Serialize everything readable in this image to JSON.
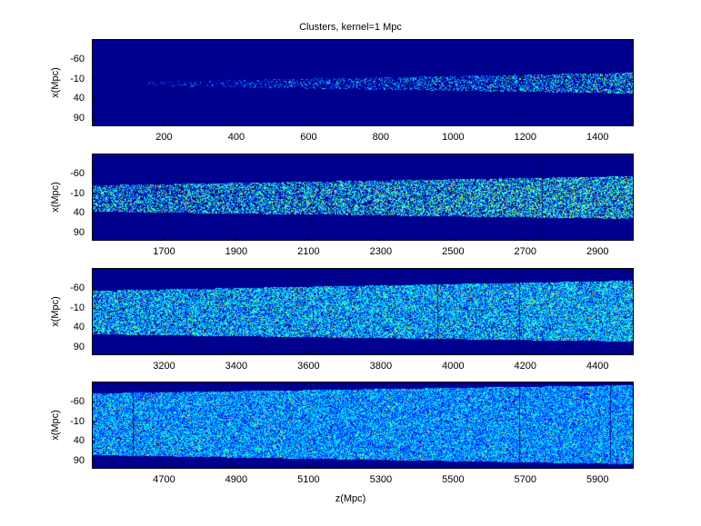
{
  "chart_data": [
    {
      "type": "heatmap",
      "title": "Clusters, kernel=1 Mpc",
      "xlabel": "",
      "ylabel": "x(Mpc)",
      "xlim": [
        0,
        1500
      ],
      "ylim": [
        -110,
        110
      ],
      "xticks": [
        200,
        400,
        600,
        800,
        1000,
        1200,
        1400
      ],
      "yticks": [
        -60,
        -10,
        40,
        90
      ],
      "colormap": "jet",
      "background": "#00008f"
    },
    {
      "type": "heatmap",
      "title": "",
      "xlabel": "",
      "ylabel": "x(Mpc)",
      "xlim": [
        1500,
        3000
      ],
      "ylim": [
        -110,
        110
      ],
      "xticks": [
        1700,
        1900,
        2100,
        2300,
        2500,
        2700,
        2900
      ],
      "yticks": [
        -60,
        -10,
        40,
        90
      ],
      "colormap": "jet",
      "background": "#00008f"
    },
    {
      "type": "heatmap",
      "title": "",
      "xlabel": "",
      "ylabel": "x(Mpc)",
      "xlim": [
        3000,
        4500
      ],
      "ylim": [
        -110,
        110
      ],
      "xticks": [
        3200,
        3400,
        3600,
        3800,
        4000,
        4200,
        4400
      ],
      "yticks": [
        -60,
        -10,
        40,
        90
      ],
      "colormap": "jet",
      "background": "#00008f"
    },
    {
      "type": "heatmap",
      "title": "",
      "xlabel": "z(Mpc)",
      "ylabel": "x(Mpc)",
      "xlim": [
        4500,
        6000
      ],
      "ylim": [
        -110,
        110
      ],
      "xticks": [
        4700,
        4900,
        5100,
        5300,
        5500,
        5700,
        5900
      ],
      "yticks": [
        -60,
        -10,
        40,
        90
      ],
      "colormap": "jet",
      "background": "#00008f"
    }
  ]
}
